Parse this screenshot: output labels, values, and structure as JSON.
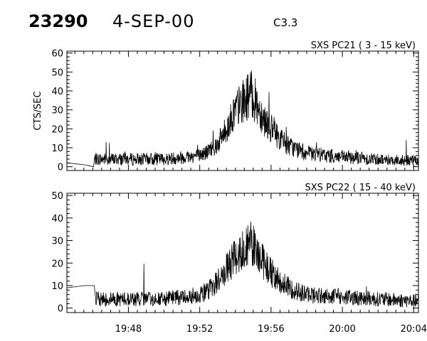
{
  "header": {
    "event_id": "23290",
    "date": "4-SEP-00",
    "flare_class": "C3.3"
  },
  "chart_data": [
    {
      "type": "line",
      "title": "SXS PC21  (  3 - 15 keV)",
      "ylabel": "CTS/SEC",
      "xlabel": "",
      "x_ticks": [
        "19:48",
        "19:52",
        "19:56",
        "20:00",
        "20:04"
      ],
      "xlim": [
        "19:44:33",
        "20:04:16"
      ],
      "ylim": [
        -2,
        61
      ],
      "y_ticks": [
        0,
        10,
        20,
        30,
        40,
        50,
        60
      ],
      "grid": false,
      "series": [
        {
          "x": [
            "19:44:33",
            "19:45:33",
            "19:46:03",
            "19:46:05",
            "19:48:00",
            "19:50:00",
            "19:51:00",
            "19:52:00",
            "19:52:30",
            "19:53:00",
            "19:53:30",
            "19:54:00",
            "19:54:30",
            "19:54:50",
            "19:55:10",
            "19:55:30",
            "19:56:00",
            "19:56:30",
            "19:57:00",
            "19:58:00",
            "20:00:00",
            "20:02:00",
            "20:04:16"
          ],
          "y": [
            2,
            1,
            0,
            4,
            4,
            4,
            5,
            6,
            8,
            12,
            20,
            30,
            35,
            39,
            34,
            27,
            20,
            15,
            11,
            7,
            5,
            4,
            3
          ]
        }
      ]
    },
    {
      "type": "line",
      "title": "SXS PC22  ( 15 - 40 keV)",
      "ylabel": "",
      "xlabel": "",
      "x_ticks": [
        "19:48",
        "19:52",
        "19:56",
        "20:00",
        "20:04"
      ],
      "xlim": [
        "19:44:33",
        "20:04:16"
      ],
      "ylim": [
        -2,
        51
      ],
      "y_ticks": [
        0,
        10,
        20,
        30,
        40,
        50
      ],
      "grid": false,
      "series": [
        {
          "x": [
            "19:44:33",
            "19:45:33",
            "19:46:05",
            "19:46:10",
            "19:48:00",
            "19:50:00",
            "19:51:00",
            "19:52:00",
            "19:52:30",
            "19:53:00",
            "19:53:30",
            "19:54:00",
            "19:54:30",
            "19:54:50",
            "19:55:10",
            "19:55:30",
            "19:56:00",
            "19:56:30",
            "19:57:00",
            "19:58:00",
            "20:00:00",
            "20:02:00",
            "20:04:16"
          ],
          "y": [
            9,
            10,
            10,
            4,
            4,
            4,
            5,
            6,
            8,
            12,
            17,
            23,
            27,
            29,
            26,
            21,
            16,
            12,
            9,
            6,
            5,
            4,
            3
          ]
        }
      ]
    }
  ]
}
